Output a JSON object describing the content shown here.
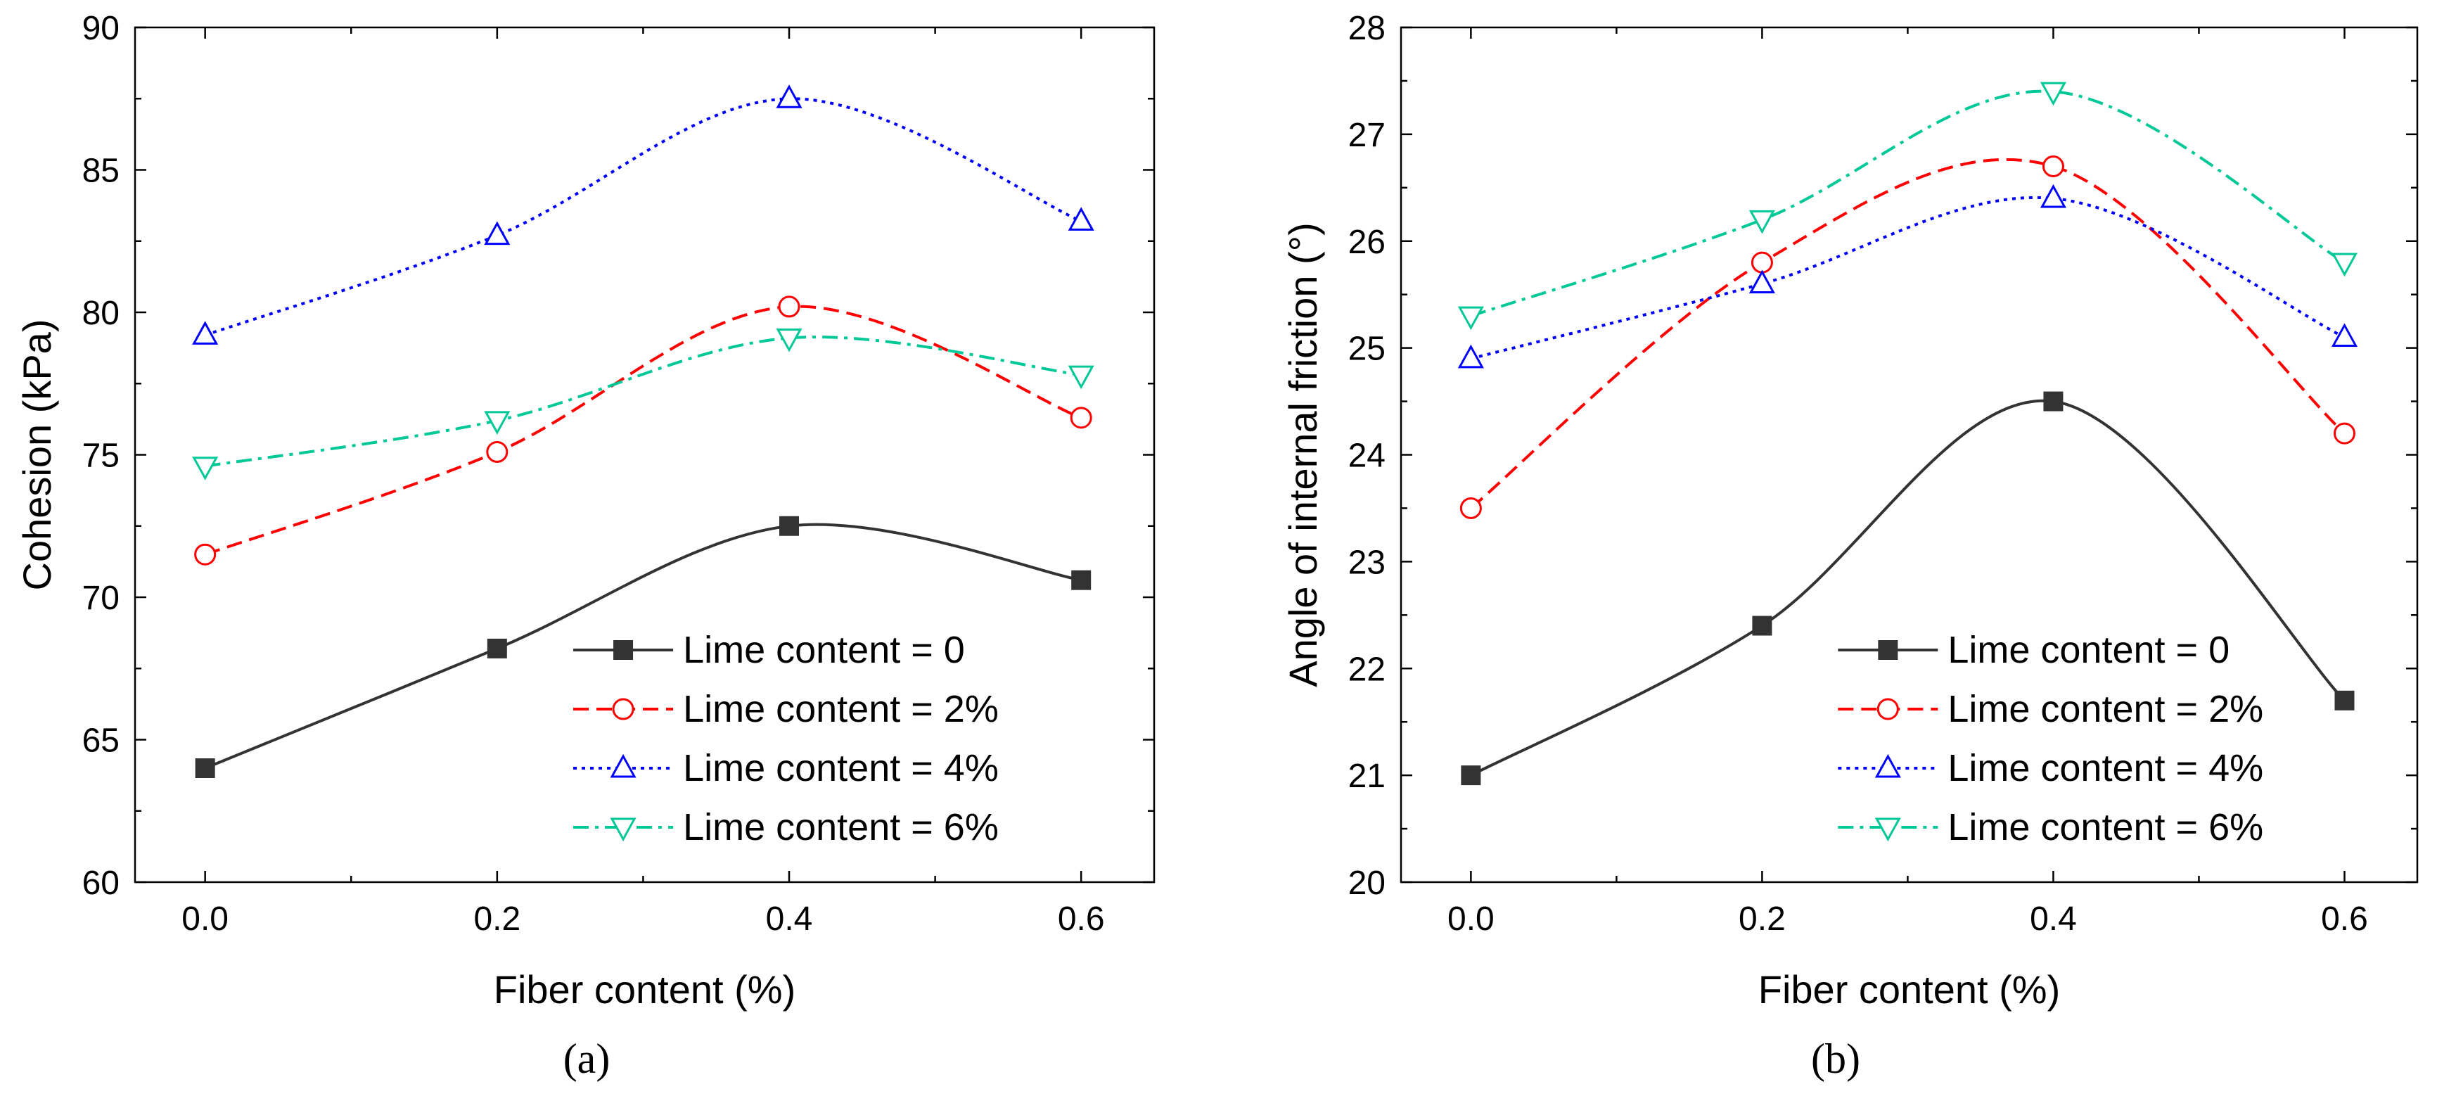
{
  "chart_data": [
    {
      "type": "line",
      "panel_label": "(a)",
      "xlabel": "Fiber content (%)",
      "ylabel": "Cohesion (kPa)",
      "x": [
        0.0,
        0.2,
        0.4,
        0.6
      ],
      "x_ticks": [
        "0.0",
        "0.2",
        "0.4",
        "0.6"
      ],
      "xlim": [
        -0.048,
        0.65
      ],
      "ylim": [
        60,
        90
      ],
      "y_ticks": [
        60,
        65,
        70,
        75,
        80,
        85,
        90
      ],
      "y_minor_step": 2.5,
      "legend_position": "bottom-right",
      "series": [
        {
          "name": "Lime content = 0",
          "values": [
            64.0,
            68.2,
            72.5,
            70.6
          ],
          "color": "#333333",
          "dash": "solid",
          "marker": "filled-square"
        },
        {
          "name": "Lime content = 2%",
          "values": [
            71.5,
            75.1,
            80.2,
            76.3
          ],
          "color": "#ff0000",
          "dash": "dashed",
          "marker": "open-circle"
        },
        {
          "name": "Lime content = 4%",
          "values": [
            79.2,
            82.7,
            87.5,
            83.2
          ],
          "color": "#0000ff",
          "dash": "dotted",
          "marker": "open-triangle-up"
        },
        {
          "name": "Lime content = 6%",
          "values": [
            74.6,
            76.2,
            79.1,
            77.8
          ],
          "color": "#00c896",
          "dash": "dash-dot",
          "marker": "open-triangle-down"
        }
      ]
    },
    {
      "type": "line",
      "panel_label": "(b)",
      "xlabel": "Fiber content (%)",
      "ylabel": "Angle of internal friction (°)",
      "x": [
        0.0,
        0.2,
        0.4,
        0.6
      ],
      "x_ticks": [
        "0.0",
        "0.2",
        "0.4",
        "0.6"
      ],
      "xlim": [
        -0.048,
        0.65
      ],
      "ylim": [
        20,
        28
      ],
      "y_ticks": [
        20,
        21,
        22,
        23,
        24,
        25,
        26,
        27,
        28
      ],
      "y_minor_step": 0.5,
      "legend_position": "bottom-right",
      "series": [
        {
          "name": "Lime content = 0",
          "values": [
            21.0,
            22.4,
            24.5,
            21.7
          ],
          "color": "#333333",
          "dash": "solid",
          "marker": "filled-square"
        },
        {
          "name": "Lime content = 2%",
          "values": [
            23.5,
            25.8,
            26.7,
            24.2
          ],
          "color": "#ff0000",
          "dash": "dashed",
          "marker": "open-circle"
        },
        {
          "name": "Lime content = 4%",
          "values": [
            24.9,
            25.6,
            26.4,
            25.1
          ],
          "color": "#0000ff",
          "dash": "dotted",
          "marker": "open-triangle-up"
        },
        {
          "name": "Lime content = 6%",
          "values": [
            25.3,
            26.2,
            27.4,
            25.8
          ],
          "color": "#00c896",
          "dash": "dash-dot",
          "marker": "open-triangle-down"
        }
      ]
    }
  ]
}
